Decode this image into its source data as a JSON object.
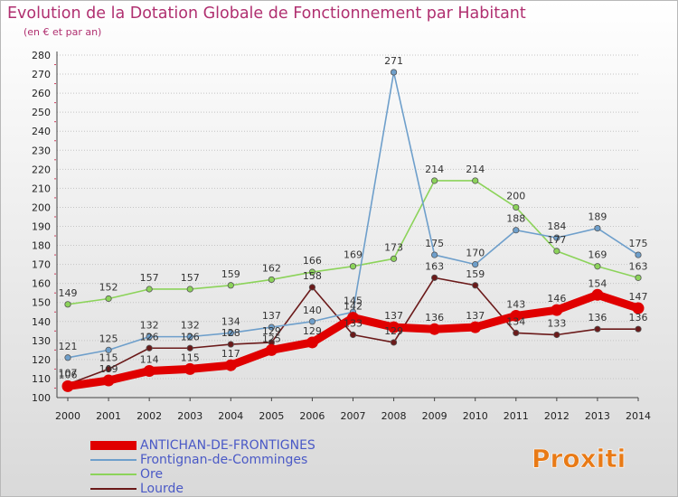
{
  "header": {
    "title": "Evolution de la Dotation Globale de Fonctionnement par Habitant",
    "subtitle": "(en € et par an)"
  },
  "logo": {
    "text": "Proxiti"
  },
  "chart_data": {
    "type": "line",
    "title": "Evolution de la Dotation Globale de Fonctionnement par Habitant",
    "subtitle": "(en € et par an)",
    "xlabel": "",
    "ylabel": "",
    "x": [
      "2000",
      "2001",
      "2002",
      "2003",
      "2004",
      "2005",
      "2006",
      "2007",
      "2008",
      "2009",
      "2010",
      "2011",
      "2012",
      "2013",
      "2014"
    ],
    "ylim": [
      100,
      280
    ],
    "ytick_step": 10,
    "grid": "horizontal dotted",
    "legend_position": "bottom-left",
    "series": [
      {
        "name": "Lourde",
        "color": "#6b1a1a",
        "values": [
          107,
          115,
          126,
          126,
          128,
          129,
          158,
          133,
          129,
          163,
          159,
          134,
          133,
          136,
          136
        ]
      },
      {
        "name": "Ore",
        "color": "#8cd35a",
        "values": [
          149,
          152,
          157,
          157,
          159,
          162,
          166,
          169,
          173,
          214,
          214,
          200,
          177,
          169,
          163
        ]
      },
      {
        "name": "Frontignan-de-Comminges",
        "color": "#6e9fcb",
        "values": [
          121,
          125,
          132,
          132,
          134,
          137,
          140,
          145,
          271,
          175,
          170,
          188,
          184,
          189,
          175
        ]
      },
      {
        "name": "ANTICHAN-DE-FRONTIGNES",
        "color": "#e00000",
        "values": [
          106,
          109,
          114,
          115,
          117,
          125,
          129,
          142,
          137,
          136,
          137,
          143,
          146,
          154,
          147
        ]
      }
    ]
  }
}
